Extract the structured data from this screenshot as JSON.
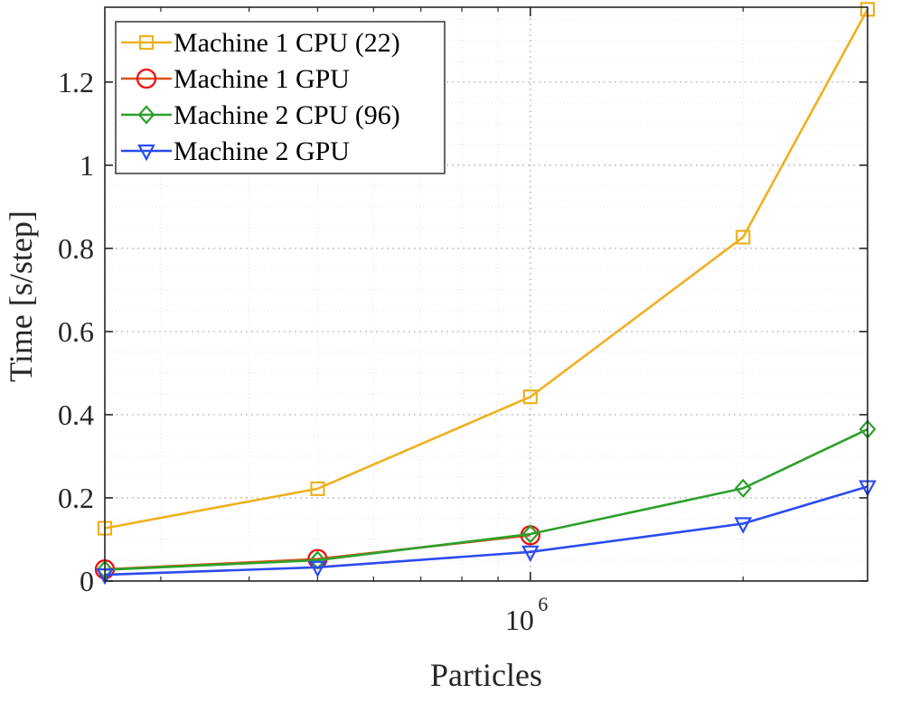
{
  "chart_data": {
    "type": "line",
    "xscale": "log",
    "xlabel": "Particles",
    "ylabel": "Time [s/step]",
    "x": [
      250000,
      500000,
      1000000,
      2000000,
      3000000
    ],
    "xlim": [
      250000,
      3000000
    ],
    "ylim": [
      0,
      1.38
    ],
    "yticks": [
      0,
      0.2,
      0.4,
      0.6,
      0.8,
      1,
      1.2
    ],
    "ytick_labels": [
      "0",
      "0.2",
      "0.4",
      "0.6",
      "0.8",
      "1",
      "1.2"
    ],
    "xticks": [
      {
        "base": "10",
        "exponent": "6",
        "value": 1000000
      }
    ],
    "grid": true,
    "legend_position": "top-left",
    "series": [
      {
        "name": "Machine 1 CPU (22)",
        "marker": "square",
        "color": "#EDB120",
        "x": [
          250000,
          500000,
          1000000,
          2000000,
          3000000
        ],
        "values": [
          0.127,
          0.222,
          0.443,
          0.827,
          1.375
        ]
      },
      {
        "name": "Machine 1 GPU",
        "marker": "circle",
        "color": "#D95319",
        "marker_color": "#FF0000",
        "x": [
          250000,
          500000,
          1000000
        ],
        "values": [
          0.028,
          0.053,
          0.11
        ]
      },
      {
        "name": "Machine 2 CPU (96)",
        "marker": "diamond",
        "color": "#2CA02C",
        "x": [
          250000,
          500000,
          1000000,
          2000000,
          3000000
        ],
        "values": [
          0.027,
          0.05,
          0.113,
          0.223,
          0.365
        ]
      },
      {
        "name": "Machine 2 GPU",
        "marker": "triangle-down",
        "color": "#2B4BF0",
        "x": [
          250000,
          500000,
          1000000,
          2000000,
          3000000
        ],
        "values": [
          0.015,
          0.033,
          0.07,
          0.138,
          0.227
        ]
      }
    ]
  }
}
